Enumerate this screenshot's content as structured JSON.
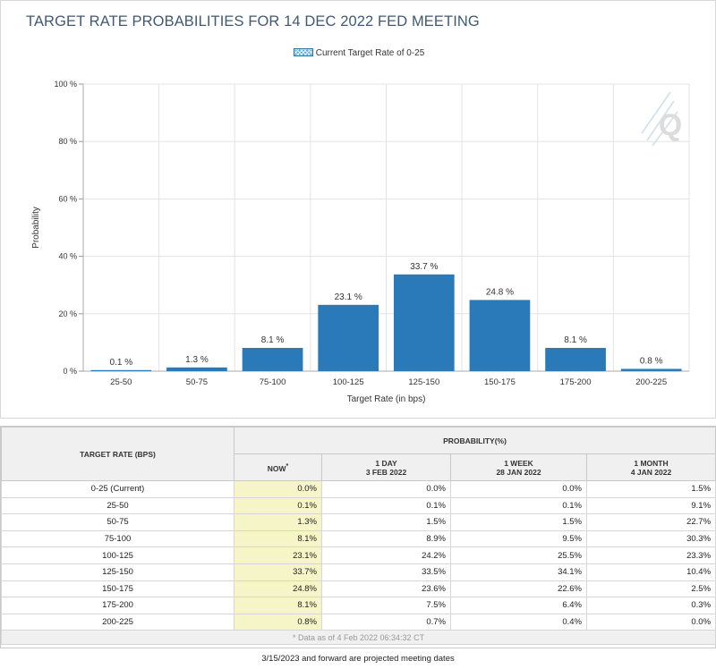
{
  "title": "TARGET RATE PROBABILITIES FOR 14 DEC 2022 FED MEETING",
  "legend_label": "Current Target Rate of 0-25",
  "chart_data": {
    "type": "bar",
    "title": "TARGET RATE PROBABILITIES FOR 14 DEC 2022 FED MEETING",
    "xlabel": "Target Rate (in bps)",
    "ylabel": "Probability",
    "categories": [
      "25-50",
      "50-75",
      "75-100",
      "100-125",
      "125-150",
      "150-175",
      "175-200",
      "200-225"
    ],
    "values": [
      0.1,
      1.3,
      8.1,
      23.1,
      33.7,
      24.8,
      8.1,
      0.8
    ],
    "data_labels": [
      "0.1 %",
      "1.3 %",
      "8.1 %",
      "23.1 %",
      "33.7 %",
      "24.8 %",
      "8.1 %",
      "0.8 %"
    ],
    "ylim": [
      0,
      100
    ],
    "yticks": [
      0,
      20,
      40,
      60,
      80,
      100
    ],
    "ytick_labels": [
      "0 %",
      "20 %",
      "40 %",
      "60 %",
      "80 %",
      "100 %"
    ],
    "grid": true,
    "legend": "top-center",
    "series": [
      {
        "name": "Current Target Rate of 0-25",
        "values": [
          0.1,
          1.3,
          8.1,
          23.1,
          33.7,
          24.8,
          8.1,
          0.8
        ]
      }
    ],
    "bar_color": "#2a7ab9"
  },
  "watermark": "Q",
  "table": {
    "rate_header": "TARGET RATE (BPS)",
    "prob_header": "PROBABILITY(%)",
    "columns": [
      {
        "line1": "NOW",
        "sup": "*",
        "line2": ""
      },
      {
        "line1": "1 DAY",
        "line2": "3 FEB 2022"
      },
      {
        "line1": "1 WEEK",
        "line2": "28 JAN 2022"
      },
      {
        "line1": "1 MONTH",
        "line2": "4 JAN 2022"
      }
    ],
    "rows": [
      {
        "rate": "0-25 (Current)",
        "values": [
          "0.0%",
          "0.0%",
          "0.0%",
          "1.5%"
        ]
      },
      {
        "rate": "25-50",
        "values": [
          "0.1%",
          "0.1%",
          "0.1%",
          "9.1%"
        ]
      },
      {
        "rate": "50-75",
        "values": [
          "1.3%",
          "1.5%",
          "1.5%",
          "22.7%"
        ]
      },
      {
        "rate": "75-100",
        "values": [
          "8.1%",
          "8.9%",
          "9.5%",
          "30.3%"
        ]
      },
      {
        "rate": "100-125",
        "values": [
          "23.1%",
          "24.2%",
          "25.5%",
          "23.3%"
        ]
      },
      {
        "rate": "125-150",
        "values": [
          "33.7%",
          "33.5%",
          "34.1%",
          "10.4%"
        ]
      },
      {
        "rate": "150-175",
        "values": [
          "24.8%",
          "23.6%",
          "22.6%",
          "2.5%"
        ]
      },
      {
        "rate": "175-200",
        "values": [
          "8.1%",
          "7.5%",
          "6.4%",
          "0.3%"
        ]
      },
      {
        "rate": "200-225",
        "values": [
          "0.8%",
          "0.7%",
          "0.4%",
          "0.0%"
        ]
      }
    ],
    "note": "* Data as of 4 Feb 2022 06:34:32 CT"
  },
  "footer": "3/15/2023 and forward are projected meeting dates",
  "colors": {
    "title": "#3f5a76",
    "bar": "#2a7ab9",
    "now_column": "#f5f5c8",
    "header_bg": "#f0f0f0"
  }
}
